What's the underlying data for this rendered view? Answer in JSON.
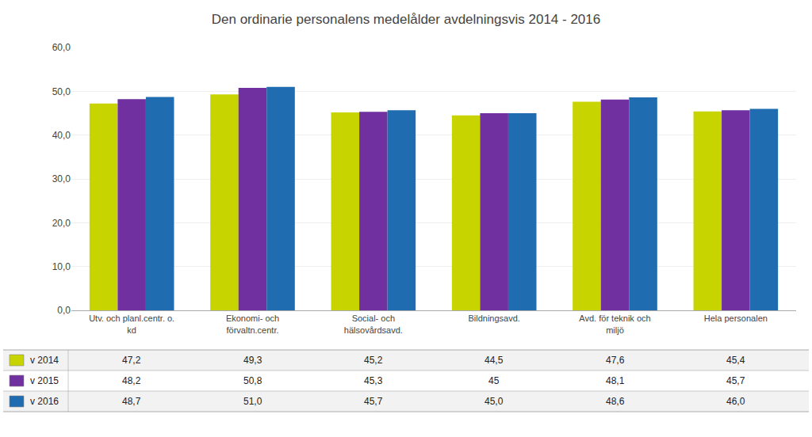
{
  "chart_data": {
    "type": "bar",
    "title": "Den ordinarie personalens medelålder avdelningsvis 2014 - 2016",
    "categories": [
      "Utv. och planl.centr. o.\nkd",
      "Ekonomi- och\nförvaltn.centr.",
      "Social- och\nhälsovårdsavd.",
      "Bildningsavd.",
      "Avd. för teknik och\nmiljö",
      "Hela personalen"
    ],
    "series": [
      {
        "name": "v 2014",
        "color": "#c8d400",
        "values": [
          47.2,
          49.3,
          45.2,
          44.5,
          47.6,
          45.4
        ],
        "value_labels": [
          "47,2",
          "49,3",
          "45,2",
          "44,5",
          "47,6",
          "45,4"
        ]
      },
      {
        "name": "v 2015",
        "color": "#7030a0",
        "values": [
          48.2,
          50.8,
          45.3,
          45.0,
          48.1,
          45.7
        ],
        "value_labels": [
          "48,2",
          "50,8",
          "45,3",
          "45",
          "48,1",
          "45,7"
        ]
      },
      {
        "name": "v 2016",
        "color": "#1f6cb0",
        "values": [
          48.7,
          51.0,
          45.7,
          45.0,
          48.6,
          46.0
        ],
        "value_labels": [
          "48,7",
          "51,0",
          "45,7",
          "45,0",
          "48,6",
          "46,0"
        ]
      }
    ],
    "ylim": [
      0,
      60
    ],
    "yticks": [
      {
        "value": 0,
        "label": "0,0"
      },
      {
        "value": 10,
        "label": "10,0"
      },
      {
        "value": 20,
        "label": "20,0"
      },
      {
        "value": 30,
        "label": "30,0"
      },
      {
        "value": 40,
        "label": "40,0"
      },
      {
        "value": 50,
        "label": "50,0"
      },
      {
        "value": 60,
        "label": "60,0"
      }
    ],
    "grid": true
  }
}
